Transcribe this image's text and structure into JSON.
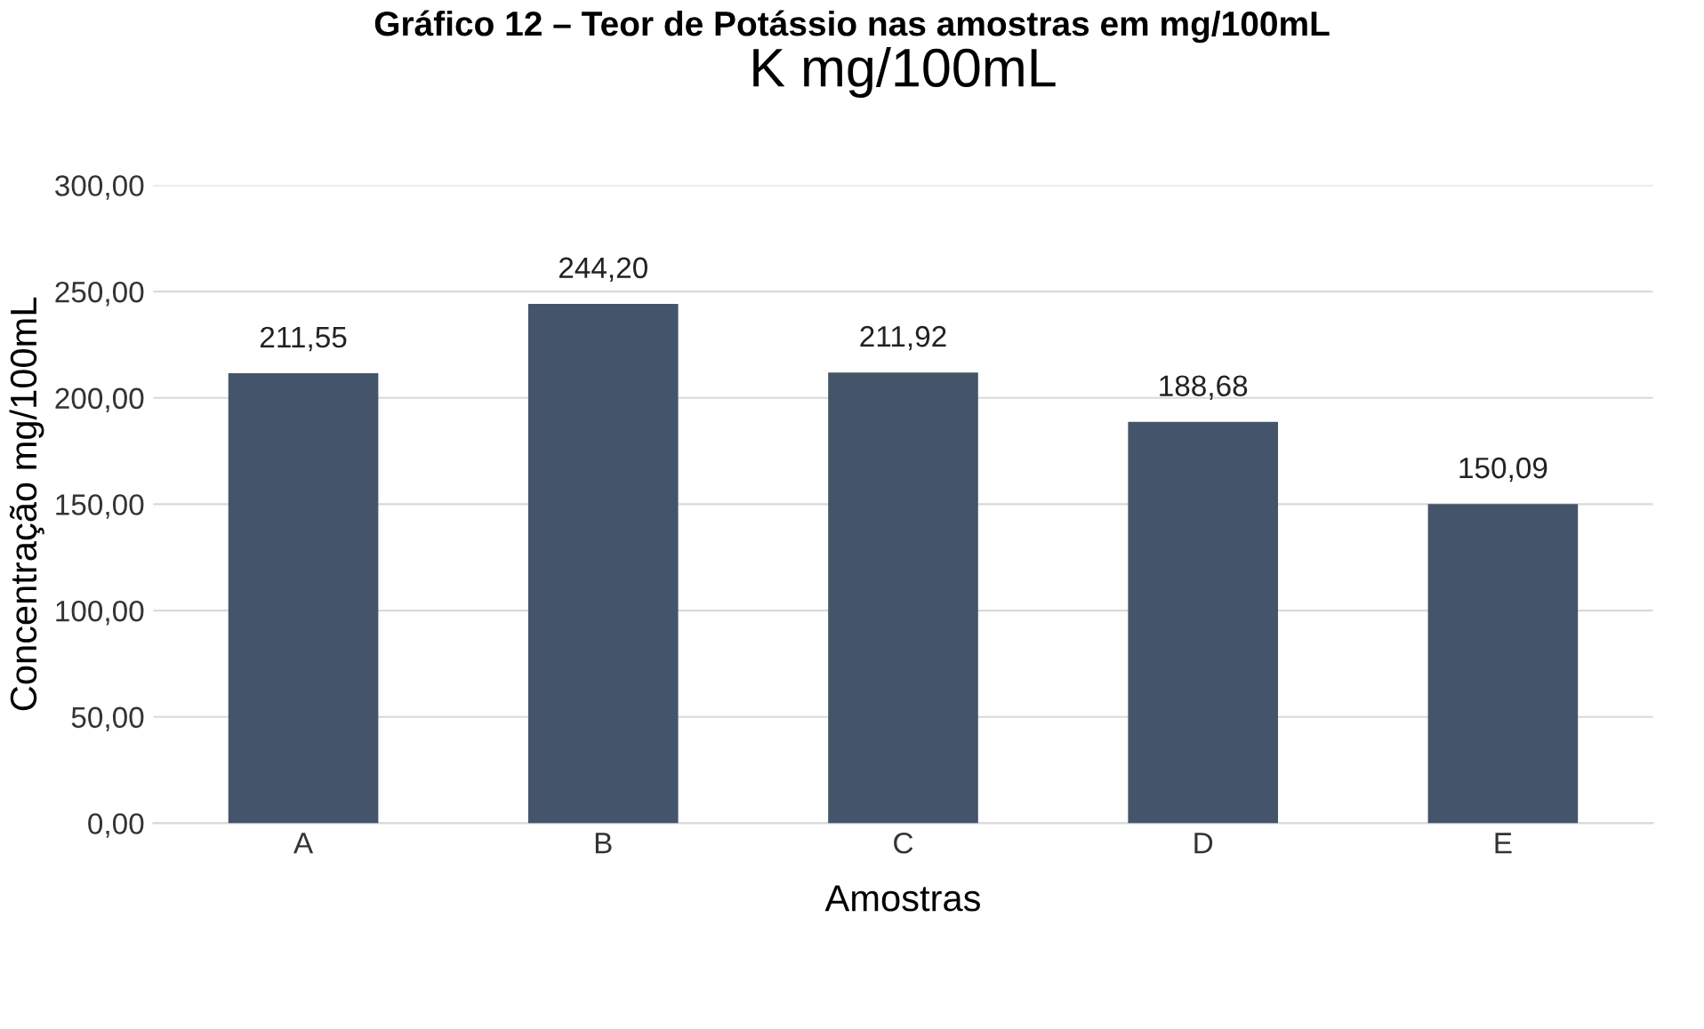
{
  "chart_data": {
    "type": "bar",
    "title": "Gráfico 12 – Teor de Potássio nas amostras em mg/100mL",
    "subtitle": "K mg/100mL",
    "xlabel": "Amostras",
    "ylabel": "Concentração mg/100mL",
    "categories": [
      "A",
      "B",
      "C",
      "D",
      "E"
    ],
    "values": [
      211.55,
      244.2,
      211.92,
      188.68,
      150.09
    ],
    "value_labels": [
      "211,55",
      "244,20",
      "211,92",
      "188,68",
      "150,09"
    ],
    "color": "#44546a",
    "ylim": [
      0,
      300
    ],
    "yticks": [
      {
        "value": 0,
        "label": "0,00"
      },
      {
        "value": 50,
        "label": "50,00"
      },
      {
        "value": 100,
        "label": "100,00"
      },
      {
        "value": 150,
        "label": "150,00"
      },
      {
        "value": 200,
        "label": "200,00"
      },
      {
        "value": 250,
        "label": "250,00"
      },
      {
        "value": 300,
        "label": "300,00"
      }
    ],
    "grid": "y",
    "legend": false
  }
}
